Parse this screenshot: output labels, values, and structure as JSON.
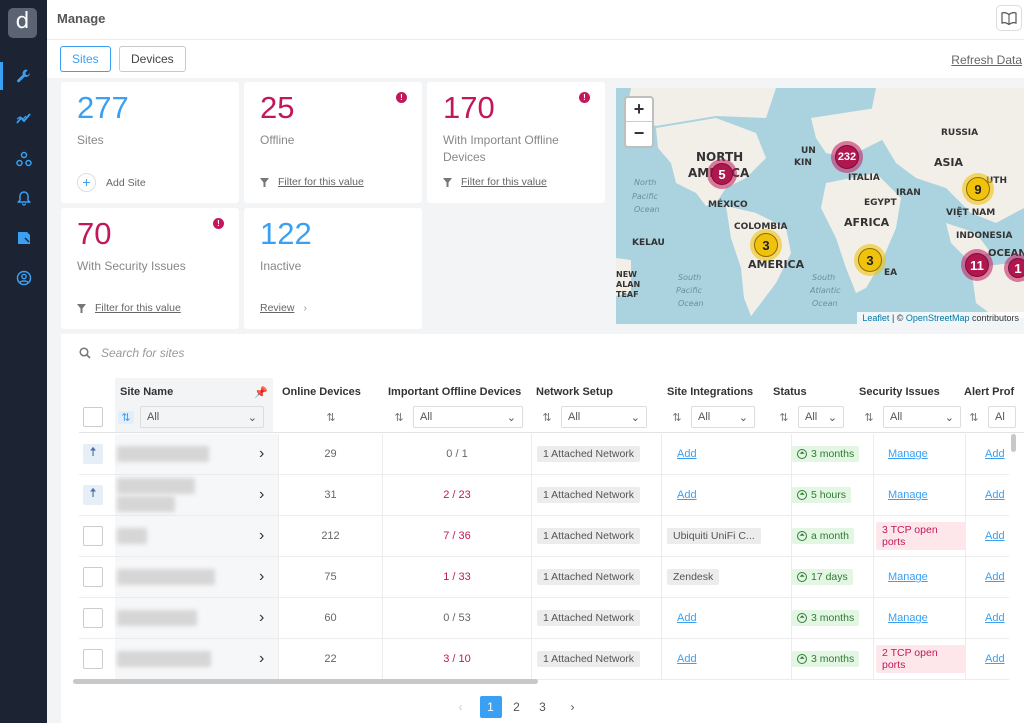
{
  "app": {
    "logo_glyph": "d"
  },
  "sidebar": {
    "items": [
      {
        "icon": "wrench-icon"
      },
      {
        "icon": "chart-line-icon"
      },
      {
        "icon": "network-icon"
      },
      {
        "icon": "bell-icon"
      },
      {
        "icon": "tag-icon"
      },
      {
        "icon": "user-circle-icon"
      }
    ]
  },
  "header": {
    "title": "Manage"
  },
  "tabs": {
    "sites": "Sites",
    "devices": "Devices",
    "refresh": "Refresh Data"
  },
  "cards": {
    "sites": {
      "num": "277",
      "label": "Sites",
      "action": "Add Site"
    },
    "offline": {
      "num": "25",
      "label": "Offline",
      "action": "Filter for this value"
    },
    "important_offline": {
      "num": "170",
      "label": "With Important Offline Devices",
      "action": "Filter for this value"
    },
    "security": {
      "num": "70",
      "label": "With Security Issues",
      "action": "Filter for this value"
    },
    "inactive": {
      "num": "122",
      "label": "Inactive",
      "action": "Review"
    }
  },
  "map": {
    "labels": [
      "NORTH",
      "AMERICA",
      "RUSSIA",
      "ASIA",
      "UN",
      "KIN",
      "IRAN",
      "EGYPT",
      "AFRICA",
      "ITALIA",
      "MÉXICO",
      "COLOMBIA",
      "AMERICA",
      "INDONESIA",
      "VIỆT NAM",
      "OCEAN",
      "North",
      "Pacific",
      "Ocean",
      "South",
      "Pacific",
      "Ocean",
      "South",
      "Atlantic",
      "Ocean",
      "KELAU",
      "NEW",
      "ALAN",
      "TEAF",
      "UTH",
      "EA"
    ],
    "clusters": [
      {
        "count": "5",
        "kind": "red"
      },
      {
        "count": "232",
        "kind": "red"
      },
      {
        "count": "9",
        "kind": "yellow"
      },
      {
        "count": "3",
        "kind": "yellow"
      },
      {
        "count": "3",
        "kind": "yellow"
      },
      {
        "count": "11",
        "kind": "red"
      },
      {
        "count": "1",
        "kind": "red"
      }
    ],
    "attribution_leaflet": "Leaflet",
    "attribution_sep": " | © ",
    "attribution_osm": "OpenStreetMap",
    "attribution_rest": " contributors"
  },
  "search": {
    "placeholder": "Search for sites"
  },
  "columns": {
    "site_name": "Site Name",
    "online": "Online Devices",
    "important_offline": "Important Offline Devices",
    "network": "Network Setup",
    "integrations": "Site Integrations",
    "status": "Status",
    "security": "Security Issues",
    "alert": "Alert Prof"
  },
  "filters": {
    "all": "All",
    "al": "Al"
  },
  "rows": [
    {
      "online": "29",
      "important": "0 / 1",
      "important_red": false,
      "network": "1 Attached Network",
      "integration": "Add",
      "integration_link": true,
      "status": "3 months",
      "security": "Manage",
      "security_pill": false,
      "alert": "Add",
      "pinned": true
    },
    {
      "online": "31",
      "important": "2 / 23",
      "important_red": true,
      "network": "1 Attached Network",
      "integration": "Add",
      "integration_link": true,
      "status": "5 hours",
      "security": "Manage",
      "security_pill": false,
      "alert": "Add",
      "pinned": true
    },
    {
      "online": "212",
      "important": "7 / 36",
      "important_red": true,
      "network": "1 Attached Network",
      "integration": "Ubiquiti UniFi C...",
      "integration_link": false,
      "status": "a month",
      "security": "3 TCP open ports",
      "security_pill": true,
      "alert": "Add",
      "pinned": false
    },
    {
      "online": "75",
      "important": "1 / 33",
      "important_red": true,
      "network": "1 Attached Network",
      "integration": "Zendesk",
      "integration_link": false,
      "status": "17 days",
      "security": "Manage",
      "security_pill": false,
      "alert": "Add",
      "pinned": false
    },
    {
      "online": "60",
      "important": "0 / 53",
      "important_red": false,
      "network": "1 Attached Network",
      "integration": "Add",
      "integration_link": true,
      "status": "3 months",
      "security": "Manage",
      "security_pill": false,
      "alert": "Add",
      "pinned": false
    },
    {
      "online": "22",
      "important": "3 / 10",
      "important_red": true,
      "network": "1 Attached Network",
      "integration": "Add",
      "integration_link": true,
      "status": "3 months",
      "security": "2 TCP open ports",
      "security_pill": true,
      "alert": "Add",
      "pinned": false
    }
  ],
  "pager": {
    "pages": [
      "1",
      "2",
      "3"
    ],
    "current": "1"
  },
  "colors": {
    "accent": "#3aa0f3",
    "danger": "#c2185b",
    "sidebar": "#1c2433",
    "success": "#2e7d32"
  }
}
